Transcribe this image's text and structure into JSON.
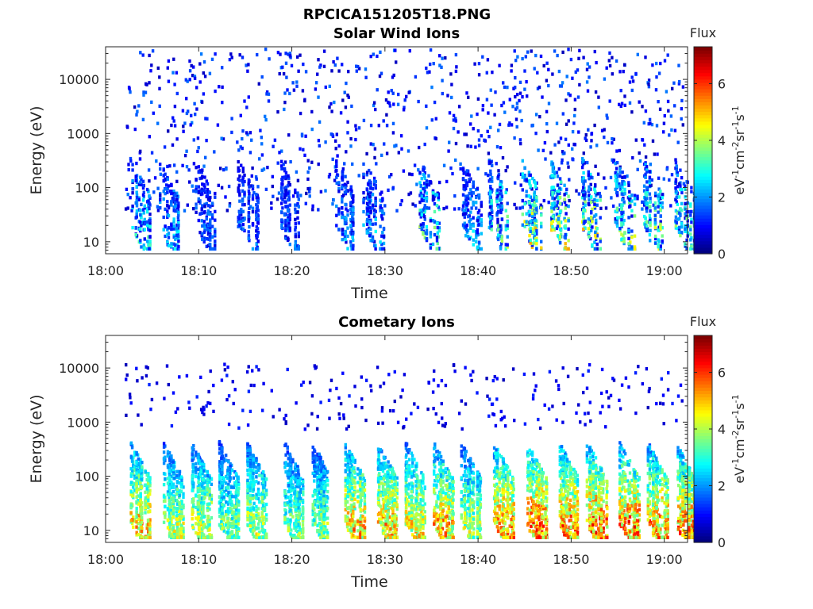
{
  "figure": {
    "filename": "RPCICA151205T18.PNG"
  },
  "chart_data": [
    {
      "type": "heatmap",
      "title": "Solar Wind Ions",
      "xlabel": "Time",
      "ylabel": "Energy (eV)",
      "y_scale": "log",
      "x_ticks": [
        "18:00",
        "18:10",
        "18:20",
        "18:30",
        "18:40",
        "18:50",
        "19:00"
      ],
      "y_ticks": [
        "10",
        "100",
        "1000",
        "10000"
      ],
      "colorbar": {
        "label": "Flux",
        "units_label": "eV-1cm-2sr-1s-1",
        "ticks": [
          "0",
          "2",
          "4",
          "6"
        ],
        "range": [
          0,
          7.3
        ],
        "colormap": "jet"
      },
      "time_range_min": [
        0,
        62.5
      ],
      "energy_range_ev": [
        6,
        40000
      ],
      "bursts": [
        {
          "t": 3.0,
          "peak_flux": 2.5
        },
        {
          "t": 6.0,
          "peak_flux": 2.0
        },
        {
          "t": 10.0,
          "peak_flux": 1.5
        },
        {
          "t": 14.5,
          "peak_flux": 1.5
        },
        {
          "t": 19.0,
          "peak_flux": 1.5
        },
        {
          "t": 25.0,
          "peak_flux": 1.8
        },
        {
          "t": 28.0,
          "peak_flux": 2.0
        },
        {
          "t": 34.0,
          "peak_flux": 3.0
        },
        {
          "t": 38.5,
          "peak_flux": 2.0
        },
        {
          "t": 41.5,
          "peak_flux": 3.0
        },
        {
          "t": 45.0,
          "peak_flux": 3.8
        },
        {
          "t": 48.0,
          "peak_flux": 3.8
        },
        {
          "t": 51.5,
          "peak_flux": 3.8
        },
        {
          "t": 55.0,
          "peak_flux": 3.3
        },
        {
          "t": 58.0,
          "peak_flux": 3.3
        },
        {
          "t": 61.5,
          "peak_flux": 3.0
        }
      ]
    },
    {
      "type": "heatmap",
      "title": "Cometary Ions",
      "xlabel": "Time",
      "ylabel": "Energy (eV)",
      "y_scale": "log",
      "x_ticks": [
        "18:00",
        "18:10",
        "18:20",
        "18:30",
        "18:40",
        "18:50",
        "19:00"
      ],
      "y_ticks": [
        "10",
        "100",
        "1000",
        "10000"
      ],
      "colorbar": {
        "label": "Flux",
        "units_label": "eV-1cm-2sr-1s-1",
        "ticks": [
          "0",
          "2",
          "4",
          "6"
        ],
        "range": [
          0,
          7.3
        ],
        "colormap": "jet"
      },
      "time_range_min": [
        0,
        62.5
      ],
      "energy_range_ev": [
        6,
        40000
      ],
      "bursts": [
        {
          "t": 3.0,
          "peak_flux": 5.5
        },
        {
          "t": 6.5,
          "peak_flux": 4.5
        },
        {
          "t": 9.5,
          "peak_flux": 4.5
        },
        {
          "t": 12.5,
          "peak_flux": 4.0
        },
        {
          "t": 15.5,
          "peak_flux": 4.5
        },
        {
          "t": 19.5,
          "peak_flux": 4.0
        },
        {
          "t": 22.5,
          "peak_flux": 4.0
        },
        {
          "t": 26.0,
          "peak_flux": 5.5
        },
        {
          "t": 29.5,
          "peak_flux": 5.5
        },
        {
          "t": 32.5,
          "peak_flux": 5.0
        },
        {
          "t": 35.5,
          "peak_flux": 5.5
        },
        {
          "t": 38.5,
          "peak_flux": 4.5
        },
        {
          "t": 42.0,
          "peak_flux": 5.8
        },
        {
          "t": 45.5,
          "peak_flux": 6.2
        },
        {
          "t": 49.0,
          "peak_flux": 6.0
        },
        {
          "t": 52.0,
          "peak_flux": 6.2
        },
        {
          "t": 55.5,
          "peak_flux": 6.0
        },
        {
          "t": 58.5,
          "peak_flux": 5.8
        },
        {
          "t": 61.5,
          "peak_flux": 5.8
        }
      ]
    }
  ]
}
